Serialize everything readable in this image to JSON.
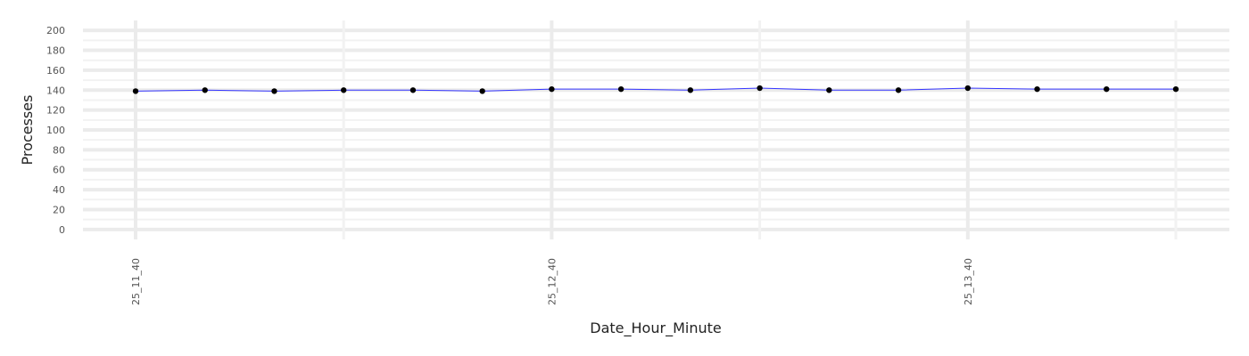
{
  "chart_data": {
    "type": "line",
    "title": "",
    "xlabel": "Date_Hour_Minute",
    "ylabel": "Processes",
    "x_tick_labels": [
      "25_11_40",
      "25_12_40",
      "25_13_40"
    ],
    "x_tick_indices": [
      0,
      6,
      12
    ],
    "values": [
      139,
      140,
      139,
      140,
      140,
      139,
      141,
      141,
      140,
      142,
      140,
      140,
      142,
      141,
      141,
      141
    ],
    "ylim": [
      -10,
      210
    ],
    "y_ticks": [
      0,
      20,
      40,
      60,
      80,
      100,
      120,
      140,
      160,
      180,
      200
    ],
    "grid": true,
    "legend": "none",
    "colors": {
      "line": "#3333ff",
      "point": "#000000",
      "grid_major": "#ebebeb",
      "grid_minor": "#f2f2f2"
    }
  }
}
